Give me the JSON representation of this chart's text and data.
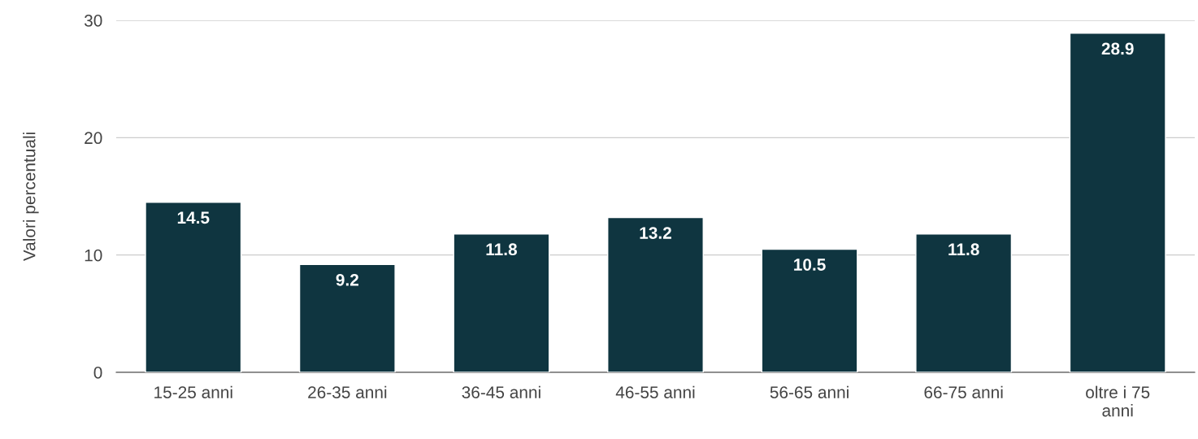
{
  "chart_data": {
    "type": "bar",
    "ylabel": "Valori percentuali",
    "categories": [
      "15-25 anni",
      "26-35 anni",
      "36-45 anni",
      "46-55 anni",
      "56-65 anni",
      "66-75 anni",
      "oltre i 75 anni"
    ],
    "values": [
      14.5,
      9.2,
      11.8,
      13.2,
      10.5,
      11.8,
      28.9
    ],
    "color": "#0f3540",
    "ylim": [
      0,
      30
    ],
    "yticks": [
      0,
      10,
      20,
      30
    ],
    "grid": "y",
    "data_labels": true
  }
}
